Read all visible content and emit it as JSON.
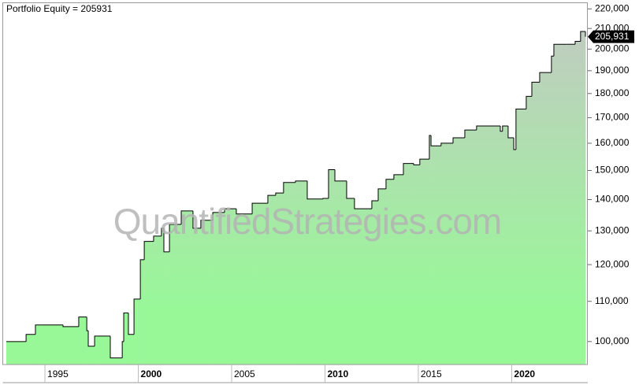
{
  "chart_data": {
    "type": "step-area",
    "title": "Portfolio Equity = 205931",
    "watermark": "QuantifiedStrategies.com",
    "log_y": true,
    "color": "#000000",
    "fill_top": "#c4c8c4",
    "fill_bottom": "#98f898",
    "x": [
      1992.93,
      1993.86,
      1993.99,
      1994.49,
      1994.79,
      1995.97,
      1996.81,
      1997.24,
      1997.32,
      1997.66,
      1998.5,
      1999.14,
      1999.22,
      1999.47,
      1999.77,
      2000.11,
      2000.32,
      2000.82,
      2001.24,
      2001.37,
      2001.67,
      2002.3,
      2002.93,
      2003.35,
      2003.99,
      2004.62,
      2005.25,
      2006.1,
      2006.94,
      2007.36,
      2007.78,
      2008.42,
      2009.05,
      2009.89,
      2010.19,
      2010.53,
      2011.16,
      2011.58,
      2012.51,
      2012.85,
      2013.27,
      2013.69,
      2014.2,
      2014.75,
      2015.08,
      2015.59,
      2015.68,
      2016.22,
      2016.86,
      2017.49,
      2018.12,
      2019.39,
      2019.51,
      2019.81,
      2020.11,
      2020.23,
      2020.78,
      2021.08,
      2021.5,
      2022.13,
      2022.26,
      2022.97,
      2023.4,
      2023.69,
      2023.95
    ],
    "values": [
      100000,
      100000,
      101700,
      104000,
      104000,
      103600,
      106000,
      102600,
      98900,
      101300,
      96200,
      100000,
      107000,
      101700,
      110600,
      121400,
      126800,
      128400,
      130800,
      123700,
      132000,
      136300,
      130800,
      133300,
      135800,
      137000,
      135300,
      138800,
      141400,
      142200,
      145800,
      146300,
      140200,
      140400,
      150300,
      146300,
      140400,
      137000,
      139600,
      143600,
      146900,
      148500,
      152500,
      152000,
      154100,
      163000,
      159000,
      160000,
      162100,
      165100,
      166700,
      164600,
      166700,
      162100,
      157600,
      173500,
      178800,
      184900,
      189200,
      196700,
      202300,
      202300,
      203700,
      208500,
      205931
    ],
    "value_labels": [
      null,
      null,
      null,
      null,
      null,
      null,
      null,
      null,
      null,
      null,
      null,
      null,
      null,
      null,
      null,
      null,
      null,
      null,
      null,
      null,
      null,
      null,
      null,
      null,
      null,
      null,
      null,
      null,
      null,
      null,
      null,
      null,
      null,
      null,
      null,
      null,
      null,
      null,
      null,
      null,
      null,
      null,
      null,
      null,
      null,
      null,
      null,
      null,
      null,
      null,
      null,
      null,
      null,
      null,
      null,
      null,
      null,
      null,
      null,
      null,
      null,
      null,
      null,
      null,
      "205,931"
    ],
    "xlim": [
      1992.93,
      2023.95
    ],
    "xticks": [
      1995,
      2000,
      2005,
      2010,
      2015,
      2020
    ],
    "ylim": [
      94700,
      223000
    ],
    "yticks": [
      {
        "value": 100000,
        "label": "100,000"
      },
      {
        "value": 110000,
        "label": "110,000"
      },
      {
        "value": 120000,
        "label": "120,000"
      },
      {
        "value": 130000,
        "label": "130,000"
      },
      {
        "value": 140000,
        "label": "140,000"
      },
      {
        "value": 150000,
        "label": "150,000"
      },
      {
        "value": 160000,
        "label": "160,000"
      },
      {
        "value": 170000,
        "label": "170,000"
      },
      {
        "value": 180000,
        "label": "180,000"
      },
      {
        "value": 190000,
        "label": "190,000"
      },
      {
        "value": 200000,
        "label": "200,000"
      },
      {
        "value": 210000,
        "label": "210,000"
      },
      {
        "value": 220000,
        "label": "220,000"
      }
    ]
  }
}
